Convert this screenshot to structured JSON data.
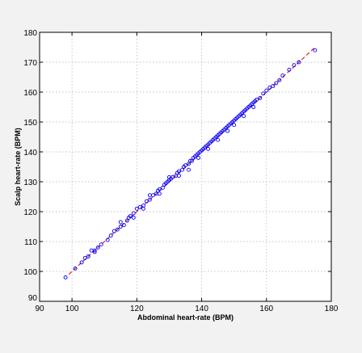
{
  "chart_data": {
    "type": "scatter",
    "title": "",
    "xlabel": "Abdominal heart-rate (BPM)",
    "ylabel": "Scalp heart-rate (BPM)",
    "xlim": [
      90,
      180
    ],
    "ylim": [
      90,
      180
    ],
    "xticks": [
      90,
      100,
      120,
      140,
      160,
      180
    ],
    "yticks": [
      90,
      100,
      110,
      120,
      130,
      140,
      150,
      160,
      170,
      180
    ],
    "grid": true,
    "colors": {
      "background": "#f2f2f2",
      "plot_area": "#ffffff",
      "points": "#0000ff",
      "fit_line": "#e8202a",
      "grid": "#b0b0b0"
    },
    "fit_line": {
      "style": "dashed",
      "x": [
        99,
        175
      ],
      "y": [
        99,
        175
      ]
    },
    "series": [
      {
        "marker": "circle",
        "points": [
          [
            98,
            98
          ],
          [
            101,
            101
          ],
          [
            103,
            103
          ],
          [
            104,
            104.5
          ],
          [
            105,
            105
          ],
          [
            106,
            107
          ],
          [
            107,
            107
          ],
          [
            107,
            106.5
          ],
          [
            108,
            108
          ],
          [
            109,
            109
          ],
          [
            111,
            110.5
          ],
          [
            112,
            112
          ],
          [
            113,
            113.5
          ],
          [
            114,
            114
          ],
          [
            115,
            115
          ],
          [
            116,
            115.5
          ],
          [
            117,
            117
          ],
          [
            117.5,
            118
          ],
          [
            118,
            118.5
          ],
          [
            119,
            119.5
          ],
          [
            120,
            121
          ],
          [
            121,
            121.5
          ],
          [
            122,
            122
          ],
          [
            123,
            123.5
          ],
          [
            124,
            124
          ],
          [
            125,
            125.5
          ],
          [
            126,
            126
          ],
          [
            126.5,
            127
          ],
          [
            127,
            127.5
          ],
          [
            128,
            128
          ],
          [
            128.5,
            129
          ],
          [
            129,
            129.5
          ],
          [
            129.5,
            130
          ],
          [
            130,
            130.5
          ],
          [
            130.5,
            131
          ],
          [
            131,
            131.5
          ],
          [
            132,
            132
          ],
          [
            132.5,
            133
          ],
          [
            133,
            133.5
          ],
          [
            134,
            134
          ],
          [
            134.5,
            135
          ],
          [
            135,
            135.5
          ],
          [
            136,
            136
          ],
          [
            136.5,
            137
          ],
          [
            137,
            137
          ],
          [
            137.5,
            138
          ],
          [
            138,
            138.5
          ],
          [
            138.5,
            139
          ],
          [
            139,
            139.5
          ],
          [
            139.5,
            140
          ],
          [
            140,
            140.5
          ],
          [
            140.5,
            141
          ],
          [
            141,
            141.5
          ],
          [
            141.5,
            142
          ],
          [
            142,
            142.5
          ],
          [
            142.5,
            143
          ],
          [
            143,
            143.5
          ],
          [
            143.5,
            144
          ],
          [
            144,
            144.5
          ],
          [
            144.5,
            145
          ],
          [
            145,
            145.5
          ],
          [
            145.5,
            146
          ],
          [
            146,
            146.5
          ],
          [
            146.5,
            147
          ],
          [
            147,
            147.5
          ],
          [
            147.5,
            148
          ],
          [
            148,
            148.5
          ],
          [
            148.5,
            149
          ],
          [
            149,
            149.5
          ],
          [
            149.5,
            150
          ],
          [
            150,
            150.5
          ],
          [
            150.5,
            151
          ],
          [
            151,
            151.5
          ],
          [
            151.5,
            152
          ],
          [
            152,
            152.5
          ],
          [
            152.5,
            153
          ],
          [
            153,
            153.5
          ],
          [
            153.5,
            154
          ],
          [
            154,
            154.5
          ],
          [
            154.5,
            155
          ],
          [
            155,
            155.5
          ],
          [
            155.5,
            156
          ],
          [
            156,
            156.5
          ],
          [
            156.5,
            157
          ],
          [
            157,
            157.5
          ],
          [
            158,
            158
          ],
          [
            159,
            159.5
          ],
          [
            160,
            160.5
          ],
          [
            161,
            161.5
          ],
          [
            162,
            162
          ],
          [
            163,
            163
          ],
          [
            164,
            164
          ],
          [
            165,
            165.5
          ],
          [
            167,
            167.5
          ],
          [
            168.5,
            169
          ],
          [
            170,
            170
          ],
          [
            175,
            174
          ],
          [
            136,
            134
          ],
          [
            130,
            131.5
          ],
          [
            122,
            121
          ],
          [
            115,
            116.5
          ],
          [
            142,
            141
          ],
          [
            148,
            147
          ],
          [
            153,
            152
          ],
          [
            127,
            126
          ],
          [
            133,
            132
          ],
          [
            145,
            144
          ],
          [
            139,
            138
          ],
          [
            124,
            125.5
          ],
          [
            119,
            118
          ],
          [
            150,
            149
          ],
          [
            156,
            155
          ]
        ]
      }
    ]
  }
}
